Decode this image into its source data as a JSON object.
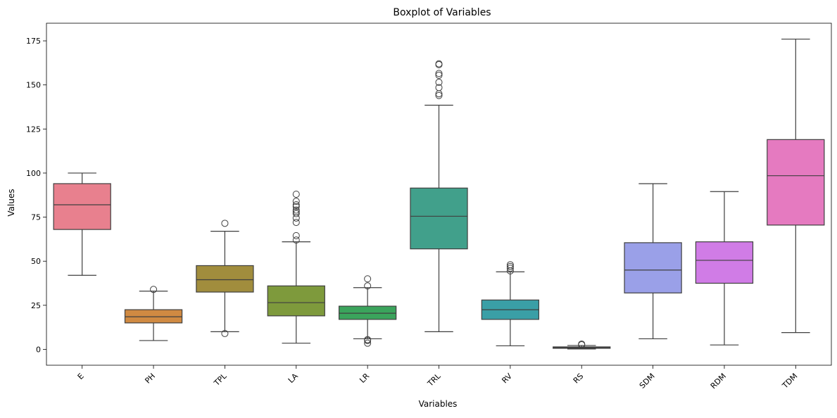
{
  "chart_data": {
    "type": "box",
    "title": "Boxplot of Variables",
    "xlabel": "Variables",
    "ylabel": "Values",
    "ylim": [
      -9,
      185
    ],
    "yticks": [
      0,
      25,
      50,
      75,
      100,
      125,
      150,
      175
    ],
    "grid": false,
    "categories": [
      "E",
      "PH",
      "TPL",
      "LA",
      "LR",
      "TRL",
      "RV",
      "RS",
      "SDM",
      "RDM",
      "TDM"
    ],
    "boxes": [
      {
        "name": "E",
        "color": "#e8808e",
        "whisker_low": 42,
        "q1": 68,
        "median": 82,
        "q3": 94,
        "whisker_high": 100,
        "outliers": []
      },
      {
        "name": "PH",
        "color": "#d08a42",
        "whisker_low": 5,
        "q1": 15,
        "median": 18.5,
        "q3": 22.5,
        "whisker_high": 33,
        "outliers": [
          34
        ]
      },
      {
        "name": "TPL",
        "color": "#a18d3d",
        "whisker_low": 10,
        "q1": 32.5,
        "median": 39.5,
        "q3": 47.5,
        "whisker_high": 67,
        "outliers": [
          9,
          71.5
        ]
      },
      {
        "name": "LA",
        "color": "#7e9a3c",
        "whisker_low": 3.5,
        "q1": 19,
        "median": 26.5,
        "q3": 36,
        "whisker_high": 61,
        "outliers": [
          62,
          64.5,
          72,
          74.5,
          77,
          78,
          79,
          81,
          82,
          84,
          88
        ]
      },
      {
        "name": "LR",
        "color": "#3ba45c",
        "whisker_low": 6,
        "q1": 17,
        "median": 20.5,
        "q3": 24.5,
        "whisker_high": 35,
        "outliers": [
          3.5,
          5,
          5.5,
          36,
          40
        ]
      },
      {
        "name": "TRL",
        "color": "#41a08b",
        "whisker_low": 10,
        "q1": 57,
        "median": 75.5,
        "q3": 91.5,
        "whisker_high": 138.5,
        "outliers": [
          144,
          145,
          148.5,
          151.5,
          155.5,
          156.5,
          161.5,
          162
        ]
      },
      {
        "name": "RV",
        "color": "#3a9fa6",
        "whisker_low": 2,
        "q1": 17,
        "median": 22.5,
        "q3": 28,
        "whisker_high": 44,
        "outliers": [
          44.5,
          46,
          47,
          48
        ]
      },
      {
        "name": "RS",
        "color": "#5b8ec2",
        "whisker_low": 0.2,
        "q1": 0.6,
        "median": 1,
        "q3": 1.4,
        "whisker_high": 2.2,
        "outliers": [
          2.6,
          3
        ]
      },
      {
        "name": "SDM",
        "color": "#9aa0e8",
        "whisker_low": 6,
        "q1": 32,
        "median": 45,
        "q3": 60.5,
        "whisker_high": 94,
        "outliers": []
      },
      {
        "name": "RDM",
        "color": "#d07ce6",
        "whisker_low": 2.5,
        "q1": 37.5,
        "median": 50.5,
        "q3": 61,
        "whisker_high": 89.5,
        "outliers": []
      },
      {
        "name": "TDM",
        "color": "#e57ac0",
        "whisker_low": 9.5,
        "q1": 70.5,
        "median": 98.5,
        "q3": 119,
        "whisker_high": 176,
        "outliers": []
      }
    ]
  }
}
